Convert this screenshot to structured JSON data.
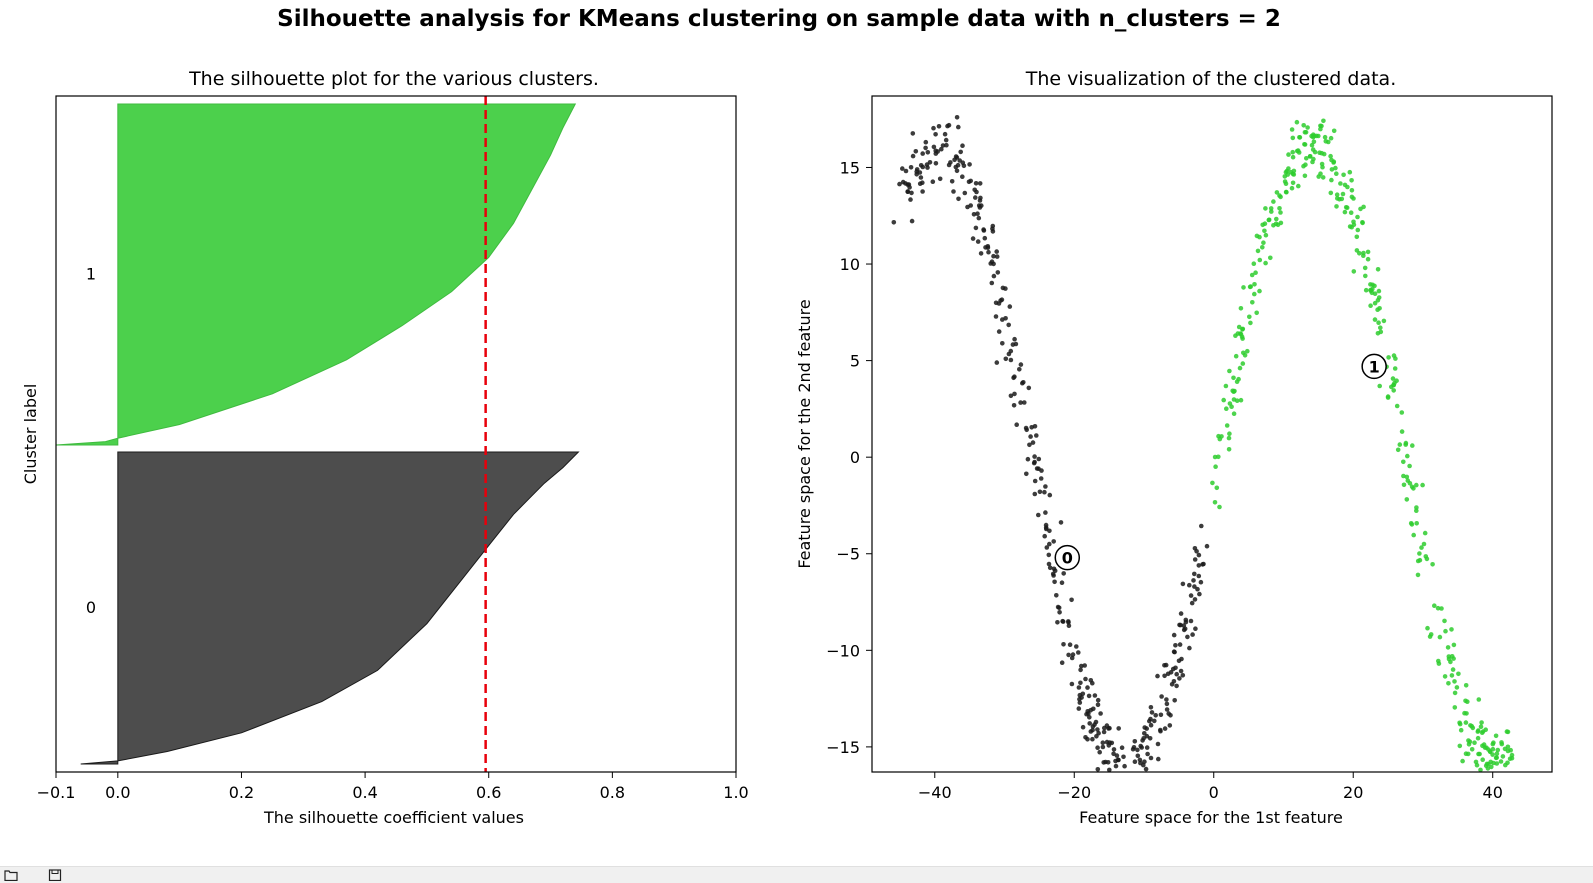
{
  "figure": {
    "suptitle": "Silhouette analysis for KMeans clustering on sample data with n_clusters = 2"
  },
  "chart_data": [
    {
      "type": "area",
      "title": "The silhouette plot for the various clusters.",
      "xlabel": "The silhouette coefficient values",
      "ylabel": "Cluster label",
      "xlim": [
        -0.1,
        1.0
      ],
      "xticks": [
        -0.1,
        0.0,
        0.2,
        0.4,
        0.6,
        0.8,
        1.0
      ],
      "xtick_labels": [
        "−0.1",
        "0.0",
        "0.2",
        "0.4",
        "0.6",
        "0.8",
        "1.0"
      ],
      "yticks": [],
      "grid": false,
      "average_silhouette_line": {
        "value": 0.595,
        "color": "#e8000b",
        "style": "dashed"
      },
      "clusters": [
        {
          "label": "0",
          "color": "#4d4d4d",
          "edge_color": "#1a1a1a",
          "silhouette_profile": [
            [
              0,
              -0.06
            ],
            [
              0.01,
              0.0
            ],
            [
              0.04,
              0.08
            ],
            [
              0.1,
              0.2
            ],
            [
              0.2,
              0.33
            ],
            [
              0.3,
              0.42
            ],
            [
              0.45,
              0.5
            ],
            [
              0.6,
              0.56
            ],
            [
              0.7,
              0.6
            ],
            [
              0.8,
              0.64
            ],
            [
              0.86,
              0.67
            ],
            [
              0.9,
              0.69
            ],
            [
              0.95,
              0.72
            ],
            [
              0.99,
              0.74
            ],
            [
              1.0,
              0.745
            ]
          ]
        },
        {
          "label": "1",
          "color": "#4cd04c",
          "edge_color": "#3fbb3f",
          "silhouette_profile": [
            [
              0,
              -0.1
            ],
            [
              0.01,
              -0.02
            ],
            [
              0.02,
              0.0
            ],
            [
              0.06,
              0.1
            ],
            [
              0.15,
              0.25
            ],
            [
              0.25,
              0.37
            ],
            [
              0.35,
              0.46
            ],
            [
              0.45,
              0.54
            ],
            [
              0.55,
              0.6
            ],
            [
              0.65,
              0.64
            ],
            [
              0.75,
              0.67
            ],
            [
              0.85,
              0.7
            ],
            [
              0.93,
              0.72
            ],
            [
              1.0,
              0.74
            ]
          ]
        }
      ]
    },
    {
      "type": "scatter",
      "title": "The visualization of the clustered data.",
      "xlabel": "Feature space for the 1st feature",
      "ylabel": "Feature space for the 2nd feature",
      "xlim": [
        -49,
        48.5
      ],
      "ylim": [
        -16.3,
        18.7
      ],
      "xticks": [
        -40,
        -20,
        0,
        20,
        40
      ],
      "xtick_labels": [
        "−40",
        "−20",
        "0",
        "20",
        "40"
      ],
      "yticks": [
        -15,
        -10,
        -5,
        0,
        5,
        10,
        15
      ],
      "ytick_labels": [
        "−15",
        "−10",
        "−5",
        "0",
        "5",
        "10",
        "15"
      ],
      "grid": false,
      "series": [
        {
          "cluster": "0",
          "color": "#1a1a1a",
          "n_points": 400,
          "x_range": [
            -44.5,
            -1.5
          ],
          "curve": "y = 16 * sin((x - 0.8) * pi / 26.7) + noise",
          "noise_sd": 0.8,
          "center": [
            -21,
            -5.2
          ],
          "center_label": "0"
        },
        {
          "cluster": "1",
          "color": "#2ecc2e",
          "n_points": 400,
          "x_range": [
            0,
            43
          ],
          "curve": "y = 16 * sin((x - 0.8) * pi / 26.7) + noise",
          "noise_sd": 0.8,
          "center": [
            23,
            4.7
          ],
          "center_label": "1"
        }
      ]
    }
  ],
  "toolbar": {
    "icons": [
      "folder-icon",
      "save-icon"
    ]
  }
}
